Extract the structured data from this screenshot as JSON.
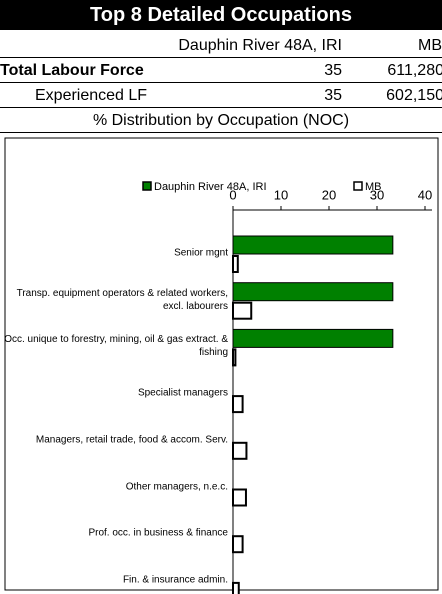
{
  "header": {
    "title": "Top 8 Detailed Occupations"
  },
  "table": {
    "columns": [
      "Dauphin River 48A, IRI",
      "MB"
    ],
    "rows": [
      [
        "Total Labour Force",
        "35",
        "611,280"
      ],
      [
        "Experienced LF",
        "35",
        "602,150"
      ]
    ],
    "subtitle": "% Distribution by Occupation (NOC)"
  },
  "chart_data": {
    "type": "hbar",
    "categories": [
      "Senior mgnt",
      "Transp. equipment operators & related workers, excl. labourers",
      "Occ. unique to forestry, mining, oil & gas extract. & fishing",
      "Specialist managers",
      "Managers, retail trade, food & accom. Serv.",
      "Other managers, n.e.c.",
      "Prof. occ. in business & finance",
      "Fin. & insurance admin."
    ],
    "series": [
      {
        "name": "Dauphin River 48A, IRI",
        "color": "#008000",
        "values": [
          33.3,
          33.3,
          33.3,
          0,
          0,
          0,
          0,
          0
        ]
      },
      {
        "name": "MB",
        "color": "#ffffff",
        "values": [
          1.0,
          3.8,
          0.5,
          2.0,
          2.8,
          2.7,
          2.0,
          1.2
        ]
      }
    ],
    "xlim": [
      0,
      40
    ],
    "xticks": [
      0,
      10,
      20,
      30,
      40
    ]
  }
}
